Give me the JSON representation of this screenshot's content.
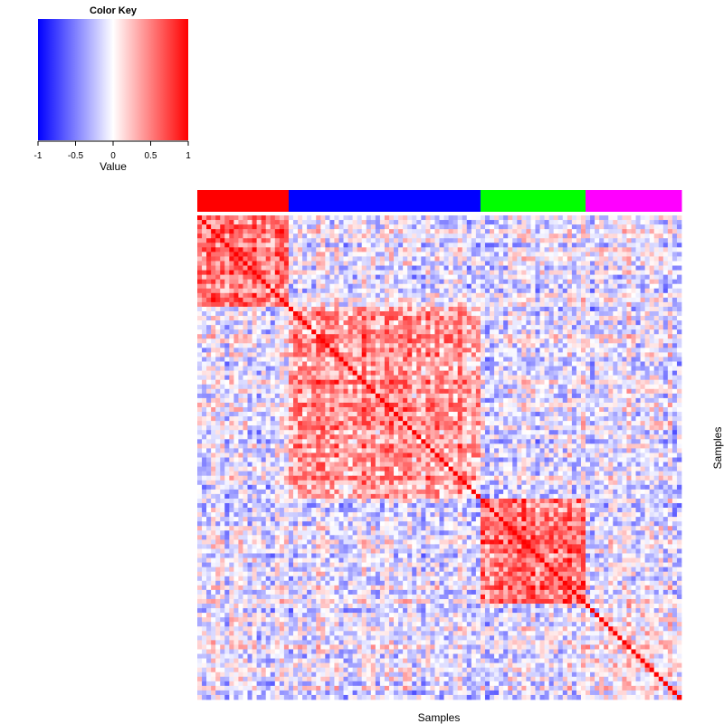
{
  "chart_data": {
    "type": "heatmap",
    "color_key": {
      "title": "Color Key",
      "xlabel": "Value",
      "range": [
        -1,
        1
      ],
      "ticks": [
        -1,
        -0.5,
        0,
        0.5,
        1
      ],
      "tick_labels": [
        "-1",
        "-0.5",
        "0",
        "0.5",
        "1"
      ],
      "colors": {
        "low": "#0000ff",
        "mid": "#ffffff",
        "high": "#ff0000"
      }
    },
    "xlabel": "Samples",
    "ylabel": "Samples",
    "n_samples": 106,
    "groups": [
      {
        "color": "#ff0000",
        "count": 20
      },
      {
        "color": "#0000ff",
        "count": 42
      },
      {
        "color": "#00ff00",
        "count": 23
      },
      {
        "color": "#ff00ff",
        "count": 21
      }
    ],
    "diagonal_value": 1,
    "mean_within_group_correlation": [
      0.45,
      0.4,
      0.55,
      0.05
    ],
    "mean_between_group_correlation": -0.1
  }
}
